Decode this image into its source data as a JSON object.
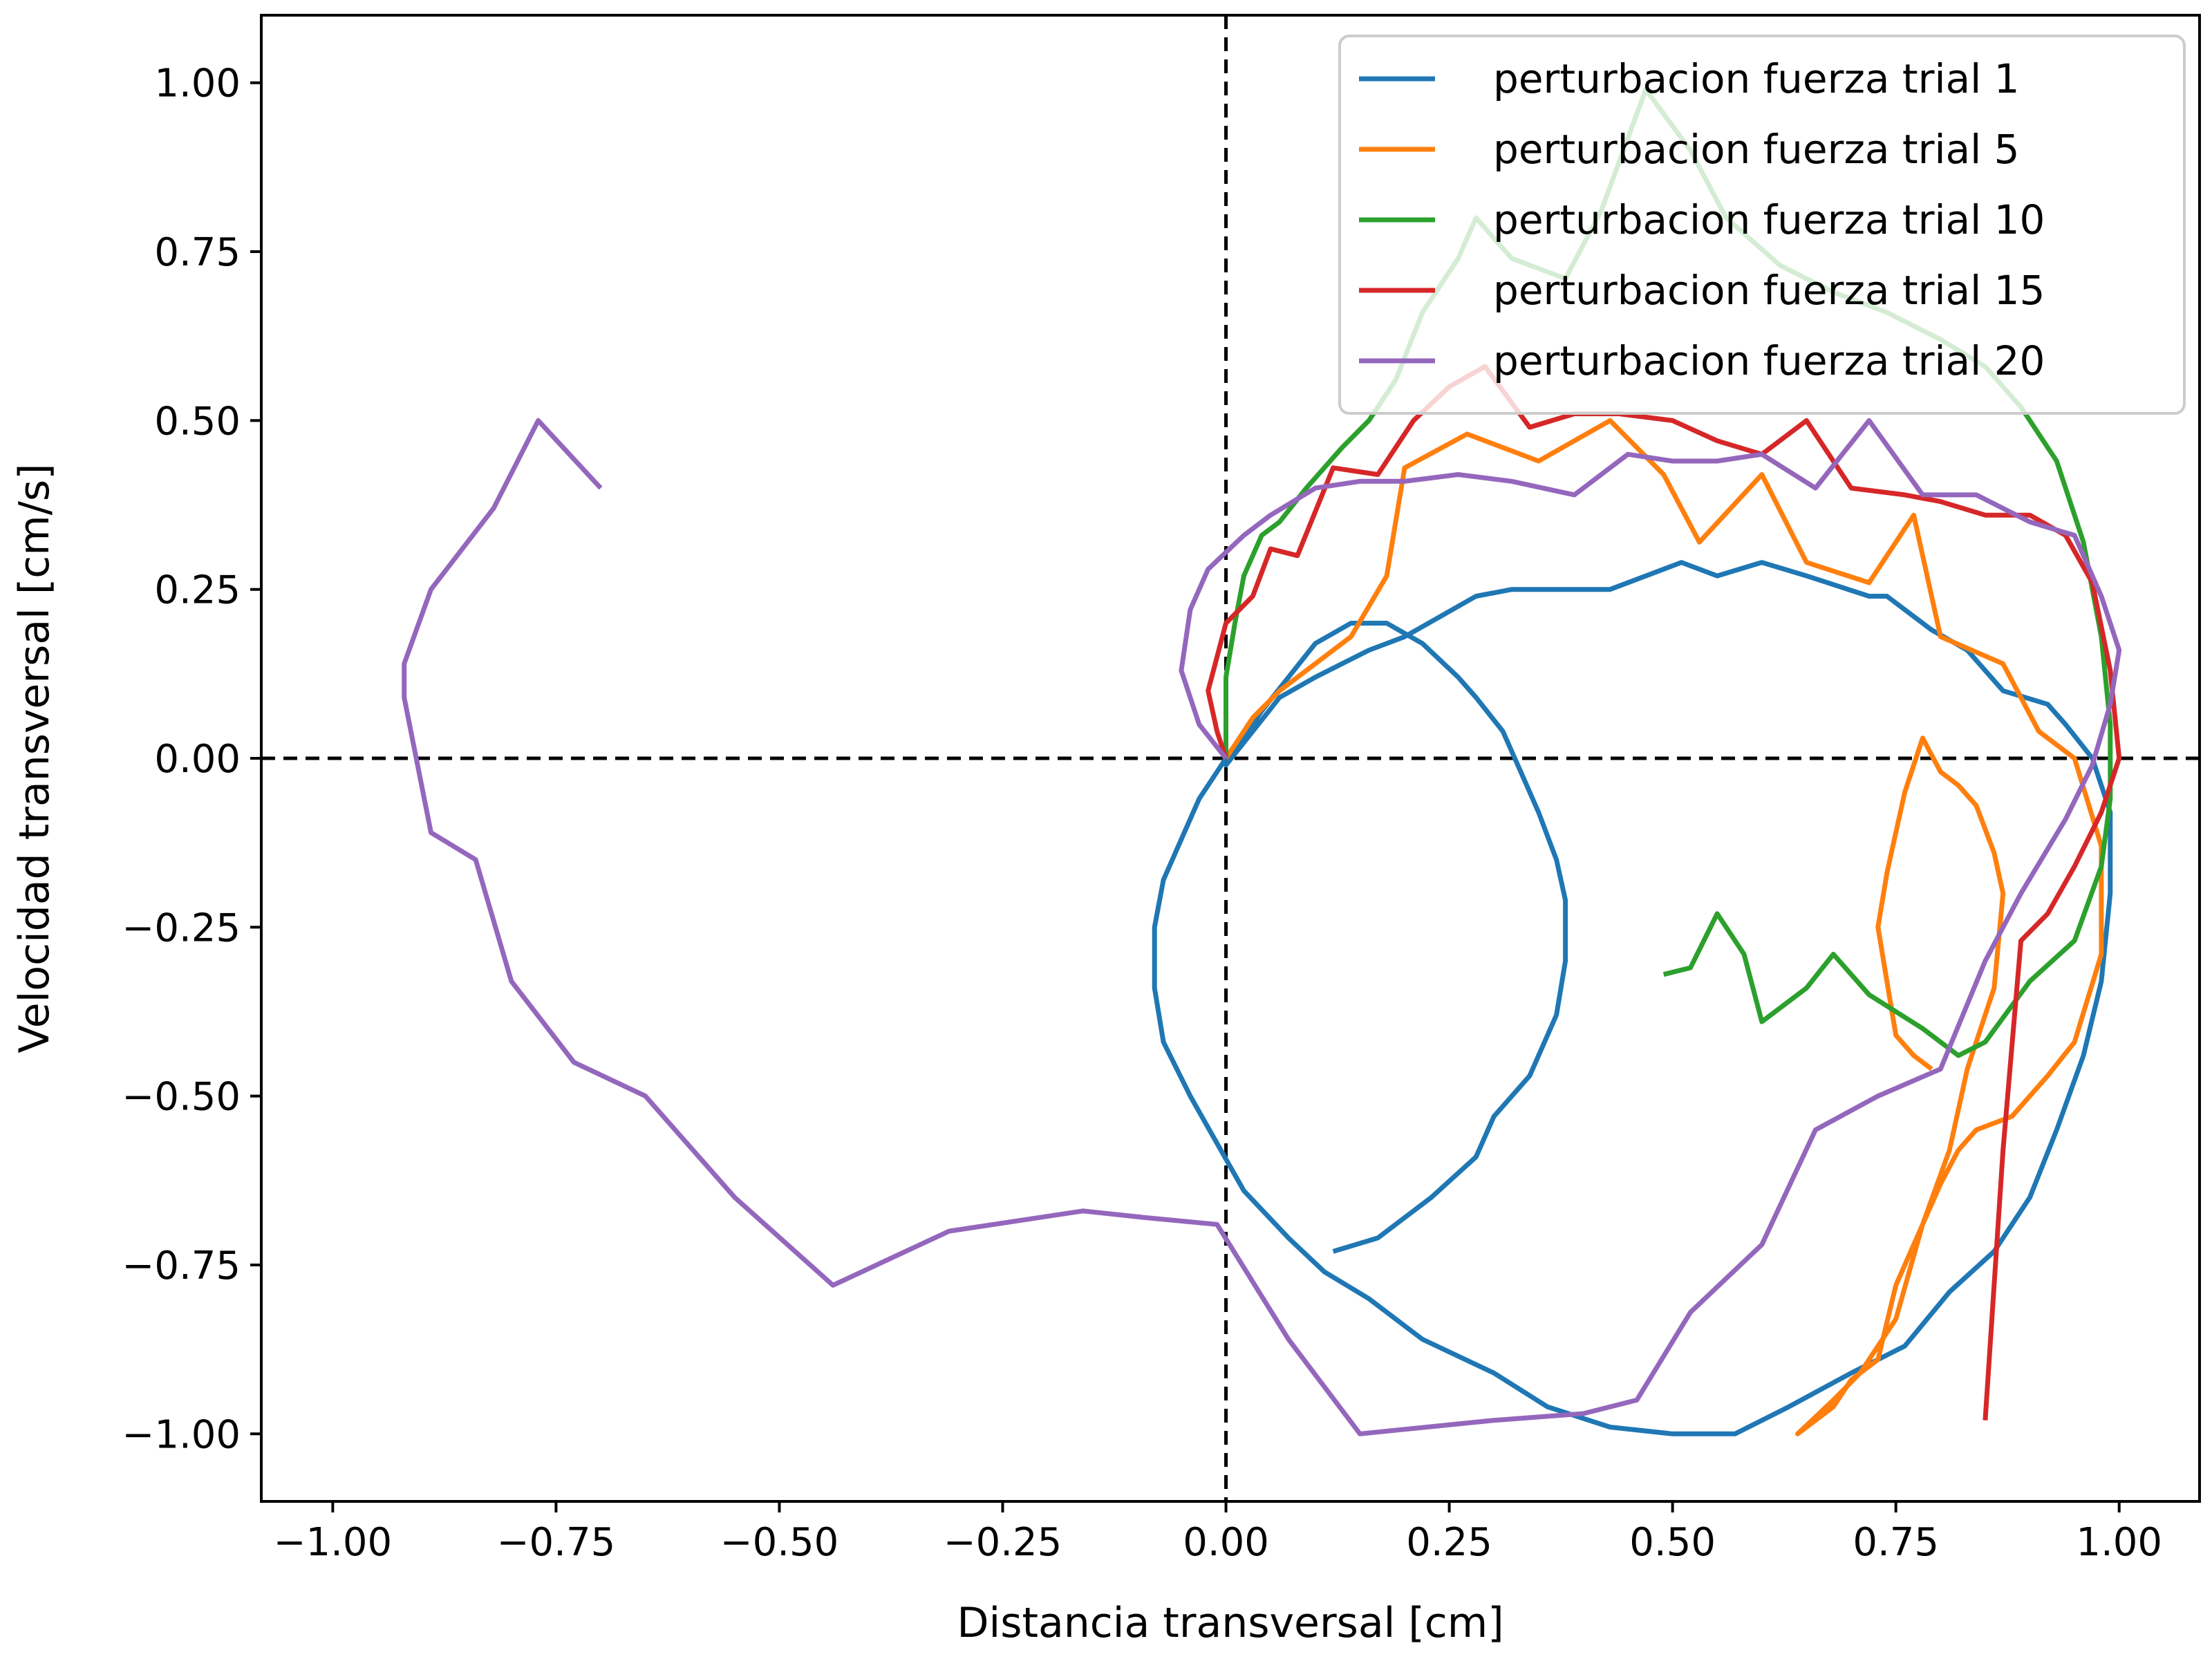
{
  "chart_data": {
    "type": "line",
    "xlabel": "Distancia transversal [cm]",
    "ylabel": "Velocidad transversal [cm/s]",
    "xlim": [
      -1.08,
      1.09
    ],
    "ylim": [
      -1.1,
      1.1
    ],
    "x_ticks": [
      -1.0,
      -0.75,
      -0.5,
      -0.25,
      0.0,
      0.25,
      0.5,
      0.75,
      1.0
    ],
    "x_tick_labels": [
      "−1.00",
      "−0.75",
      "−0.50",
      "−0.25",
      "0.00",
      "0.25",
      "0.50",
      "0.75",
      "1.00"
    ],
    "y_ticks": [
      -1.0,
      -0.75,
      -0.5,
      -0.25,
      0.0,
      0.25,
      0.5,
      0.75,
      1.0
    ],
    "y_tick_labels": [
      "−1.00",
      "−0.75",
      "−0.50",
      "−0.25",
      "0.00",
      "0.25",
      "0.50",
      "0.75",
      "1.00"
    ],
    "grid": false,
    "reference_lines": {
      "x": 0,
      "y": 0,
      "style": "dashed"
    },
    "legend_position": "top-right",
    "series": [
      {
        "name": "perturbacion fuerza trial 1",
        "color": "#1f77b4",
        "points": [
          [
            0.0,
            0.0
          ],
          [
            -0.03,
            -0.06
          ],
          [
            -0.05,
            -0.12
          ],
          [
            -0.07,
            -0.18
          ],
          [
            -0.08,
            -0.25
          ],
          [
            -0.08,
            -0.34
          ],
          [
            -0.07,
            -0.42
          ],
          [
            -0.04,
            -0.5
          ],
          [
            -0.01,
            -0.57
          ],
          [
            0.02,
            -0.64
          ],
          [
            0.07,
            -0.71
          ],
          [
            0.11,
            -0.76
          ],
          [
            0.16,
            -0.8
          ],
          [
            0.22,
            -0.86
          ],
          [
            0.3,
            -0.91
          ],
          [
            0.36,
            -0.96
          ],
          [
            0.43,
            -0.99
          ],
          [
            0.5,
            -1.0
          ],
          [
            0.57,
            -1.0
          ],
          [
            0.63,
            -0.96
          ],
          [
            0.7,
            -0.91
          ],
          [
            0.76,
            -0.87
          ],
          [
            0.81,
            -0.79
          ],
          [
            0.86,
            -0.73
          ],
          [
            0.9,
            -0.65
          ],
          [
            0.93,
            -0.55
          ],
          [
            0.96,
            -0.44
          ],
          [
            0.98,
            -0.33
          ],
          [
            0.99,
            -0.2
          ],
          [
            0.99,
            -0.08
          ],
          [
            0.97,
            0.0
          ],
          [
            0.94,
            0.05
          ],
          [
            0.92,
            0.08
          ],
          [
            0.87,
            0.1
          ],
          [
            0.83,
            0.16
          ],
          [
            0.79,
            0.19
          ],
          [
            0.74,
            0.24
          ],
          [
            0.72,
            0.24
          ],
          [
            0.65,
            0.27
          ],
          [
            0.6,
            0.29
          ],
          [
            0.55,
            0.27
          ],
          [
            0.51,
            0.29
          ],
          [
            0.43,
            0.25
          ],
          [
            0.38,
            0.25
          ],
          [
            0.32,
            0.25
          ],
          [
            0.28,
            0.24
          ],
          [
            0.24,
            0.21
          ],
          [
            0.2,
            0.18
          ],
          [
            0.16,
            0.16
          ],
          [
            0.1,
            0.12
          ],
          [
            0.06,
            0.09
          ],
          [
            0.03,
            0.04
          ],
          [
            0.0,
            -0.01
          ],
          [
            0.04,
            0.07
          ],
          [
            0.07,
            0.12
          ],
          [
            0.1,
            0.17
          ],
          [
            0.14,
            0.2
          ],
          [
            0.18,
            0.2
          ],
          [
            0.22,
            0.17
          ],
          [
            0.26,
            0.12
          ],
          [
            0.28,
            0.09
          ],
          [
            0.31,
            0.04
          ],
          [
            0.33,
            -0.02
          ],
          [
            0.35,
            -0.08
          ],
          [
            0.37,
            -0.15
          ],
          [
            0.38,
            -0.21
          ],
          [
            0.38,
            -0.3
          ],
          [
            0.37,
            -0.38
          ],
          [
            0.34,
            -0.47
          ],
          [
            0.3,
            -0.53
          ],
          [
            0.28,
            -0.59
          ],
          [
            0.23,
            -0.65
          ],
          [
            0.17,
            -0.71
          ],
          [
            0.12,
            -0.73
          ]
        ]
      },
      {
        "name": "perturbacion fuerza trial 5",
        "color": "#ff7f0e",
        "points": [
          [
            0.0,
            0.0
          ],
          [
            0.03,
            0.06
          ],
          [
            0.06,
            0.1
          ],
          [
            0.1,
            0.14
          ],
          [
            0.14,
            0.18
          ],
          [
            0.18,
            0.27
          ],
          [
            0.2,
            0.43
          ],
          [
            0.27,
            0.48
          ],
          [
            0.35,
            0.44
          ],
          [
            0.43,
            0.5
          ],
          [
            0.49,
            0.42
          ],
          [
            0.53,
            0.32
          ],
          [
            0.6,
            0.42
          ],
          [
            0.65,
            0.29
          ],
          [
            0.72,
            0.26
          ],
          [
            0.77,
            0.36
          ],
          [
            0.8,
            0.18
          ],
          [
            0.87,
            0.14
          ],
          [
            0.91,
            0.04
          ],
          [
            0.95,
            0.0
          ],
          [
            0.98,
            -0.13
          ],
          [
            0.98,
            -0.29
          ],
          [
            0.95,
            -0.42
          ],
          [
            0.92,
            -0.47
          ],
          [
            0.88,
            -0.53
          ],
          [
            0.84,
            -0.55
          ],
          [
            0.82,
            -0.58
          ],
          [
            0.8,
            -0.63
          ],
          [
            0.78,
            -0.69
          ],
          [
            0.75,
            -0.78
          ],
          [
            0.73,
            -0.89
          ],
          [
            0.7,
            -0.92
          ],
          [
            0.68,
            -0.96
          ],
          [
            0.64,
            -1.0
          ],
          [
            0.68,
            -0.95
          ],
          [
            0.71,
            -0.91
          ],
          [
            0.75,
            -0.83
          ],
          [
            0.78,
            -0.69
          ],
          [
            0.81,
            -0.58
          ],
          [
            0.83,
            -0.46
          ],
          [
            0.86,
            -0.34
          ],
          [
            0.87,
            -0.2
          ],
          [
            0.86,
            -0.14
          ],
          [
            0.84,
            -0.07
          ],
          [
            0.82,
            -0.04
          ],
          [
            0.8,
            -0.02
          ],
          [
            0.78,
            0.03
          ],
          [
            0.76,
            -0.05
          ],
          [
            0.74,
            -0.17
          ],
          [
            0.73,
            -0.25
          ],
          [
            0.74,
            -0.33
          ],
          [
            0.75,
            -0.41
          ],
          [
            0.77,
            -0.44
          ],
          [
            0.79,
            -0.46
          ]
        ]
      },
      {
        "name": "perturbacion fuerza trial 10",
        "color": "#2ca02c",
        "points": [
          [
            0.0,
            0.0
          ],
          [
            0.0,
            0.12
          ],
          [
            0.01,
            0.2
          ],
          [
            0.02,
            0.27
          ],
          [
            0.04,
            0.33
          ],
          [
            0.06,
            0.35
          ],
          [
            0.09,
            0.4
          ],
          [
            0.13,
            0.46
          ],
          [
            0.16,
            0.5
          ],
          [
            0.19,
            0.56
          ],
          [
            0.22,
            0.66
          ],
          [
            0.26,
            0.74
          ],
          [
            0.28,
            0.8
          ],
          [
            0.32,
            0.74
          ],
          [
            0.38,
            0.71
          ],
          [
            0.42,
            0.81
          ],
          [
            0.47,
            0.99
          ],
          [
            0.52,
            0.9
          ],
          [
            0.56,
            0.8
          ],
          [
            0.62,
            0.73
          ],
          [
            0.68,
            0.69
          ],
          [
            0.74,
            0.66
          ],
          [
            0.8,
            0.62
          ],
          [
            0.85,
            0.58
          ],
          [
            0.89,
            0.52
          ],
          [
            0.93,
            0.44
          ],
          [
            0.96,
            0.32
          ],
          [
            0.98,
            0.18
          ],
          [
            0.99,
            0.05
          ],
          [
            0.99,
            -0.06
          ],
          [
            0.98,
            -0.16
          ],
          [
            0.95,
            -0.27
          ],
          [
            0.9,
            -0.33
          ],
          [
            0.85,
            -0.42
          ],
          [
            0.82,
            -0.44
          ],
          [
            0.78,
            -0.4
          ],
          [
            0.72,
            -0.35
          ],
          [
            0.68,
            -0.29
          ],
          [
            0.65,
            -0.34
          ],
          [
            0.6,
            -0.39
          ],
          [
            0.58,
            -0.29
          ],
          [
            0.55,
            -0.23
          ],
          [
            0.52,
            -0.31
          ],
          [
            0.49,
            -0.32
          ]
        ]
      },
      {
        "name": "perturbacion fuerza trial 15",
        "color": "#d62728",
        "points": [
          [
            0.0,
            0.0
          ],
          [
            -0.01,
            0.04
          ],
          [
            -0.02,
            0.1
          ],
          [
            0.0,
            0.2
          ],
          [
            0.03,
            0.24
          ],
          [
            0.05,
            0.31
          ],
          [
            0.08,
            0.3
          ],
          [
            0.12,
            0.43
          ],
          [
            0.17,
            0.42
          ],
          [
            0.21,
            0.5
          ],
          [
            0.25,
            0.55
          ],
          [
            0.29,
            0.58
          ],
          [
            0.34,
            0.49
          ],
          [
            0.39,
            0.51
          ],
          [
            0.44,
            0.51
          ],
          [
            0.5,
            0.5
          ],
          [
            0.55,
            0.47
          ],
          [
            0.6,
            0.45
          ],
          [
            0.65,
            0.5
          ],
          [
            0.7,
            0.4
          ],
          [
            0.76,
            0.39
          ],
          [
            0.8,
            0.38
          ],
          [
            0.85,
            0.36
          ],
          [
            0.9,
            0.36
          ],
          [
            0.94,
            0.33
          ],
          [
            0.97,
            0.26
          ],
          [
            0.99,
            0.13
          ],
          [
            1.0,
            0.0
          ],
          [
            0.98,
            -0.08
          ],
          [
            0.95,
            -0.16
          ],
          [
            0.92,
            -0.23
          ],
          [
            0.89,
            -0.27
          ],
          [
            0.87,
            -0.58
          ],
          [
            0.85,
            -0.98
          ]
        ]
      },
      {
        "name": "perturbacion fuerza trial 20",
        "color": "#9467bd",
        "points": [
          [
            0.0,
            0.0
          ],
          [
            -0.03,
            0.05
          ],
          [
            -0.05,
            0.13
          ],
          [
            -0.04,
            0.22
          ],
          [
            -0.02,
            0.28
          ],
          [
            0.02,
            0.33
          ],
          [
            0.05,
            0.36
          ],
          [
            0.1,
            0.4
          ],
          [
            0.15,
            0.41
          ],
          [
            0.2,
            0.41
          ],
          [
            0.26,
            0.42
          ],
          [
            0.32,
            0.41
          ],
          [
            0.39,
            0.39
          ],
          [
            0.45,
            0.45
          ],
          [
            0.5,
            0.44
          ],
          [
            0.55,
            0.44
          ],
          [
            0.6,
            0.45
          ],
          [
            0.66,
            0.4
          ],
          [
            0.72,
            0.5
          ],
          [
            0.78,
            0.39
          ],
          [
            0.84,
            0.39
          ],
          [
            0.9,
            0.35
          ],
          [
            0.95,
            0.33
          ],
          [
            0.98,
            0.24
          ],
          [
            1.0,
            0.16
          ],
          [
            0.99,
            0.08
          ],
          [
            0.97,
            -0.01
          ],
          [
            0.94,
            -0.09
          ],
          [
            0.89,
            -0.2
          ],
          [
            0.85,
            -0.3
          ],
          [
            0.8,
            -0.46
          ],
          [
            0.73,
            -0.5
          ],
          [
            0.66,
            -0.55
          ],
          [
            0.6,
            -0.72
          ],
          [
            0.52,
            -0.82
          ],
          [
            0.46,
            -0.95
          ],
          [
            0.4,
            -0.97
          ],
          [
            0.3,
            -0.98
          ],
          [
            0.15,
            -1.0
          ],
          [
            0.07,
            -0.86
          ],
          [
            -0.01,
            -0.69
          ],
          [
            -0.09,
            -0.68
          ],
          [
            -0.16,
            -0.67
          ],
          [
            -0.31,
            -0.7
          ],
          [
            -0.44,
            -0.78
          ],
          [
            -0.55,
            -0.65
          ],
          [
            -0.65,
            -0.5
          ],
          [
            -0.73,
            -0.45
          ],
          [
            -0.8,
            -0.33
          ],
          [
            -0.84,
            -0.15
          ],
          [
            -0.89,
            -0.11
          ],
          [
            -0.92,
            0.09
          ],
          [
            -0.92,
            0.14
          ],
          [
            -0.89,
            0.25
          ],
          [
            -0.82,
            0.37
          ],
          [
            -0.77,
            0.5
          ],
          [
            -0.7,
            0.4
          ]
        ]
      }
    ]
  }
}
